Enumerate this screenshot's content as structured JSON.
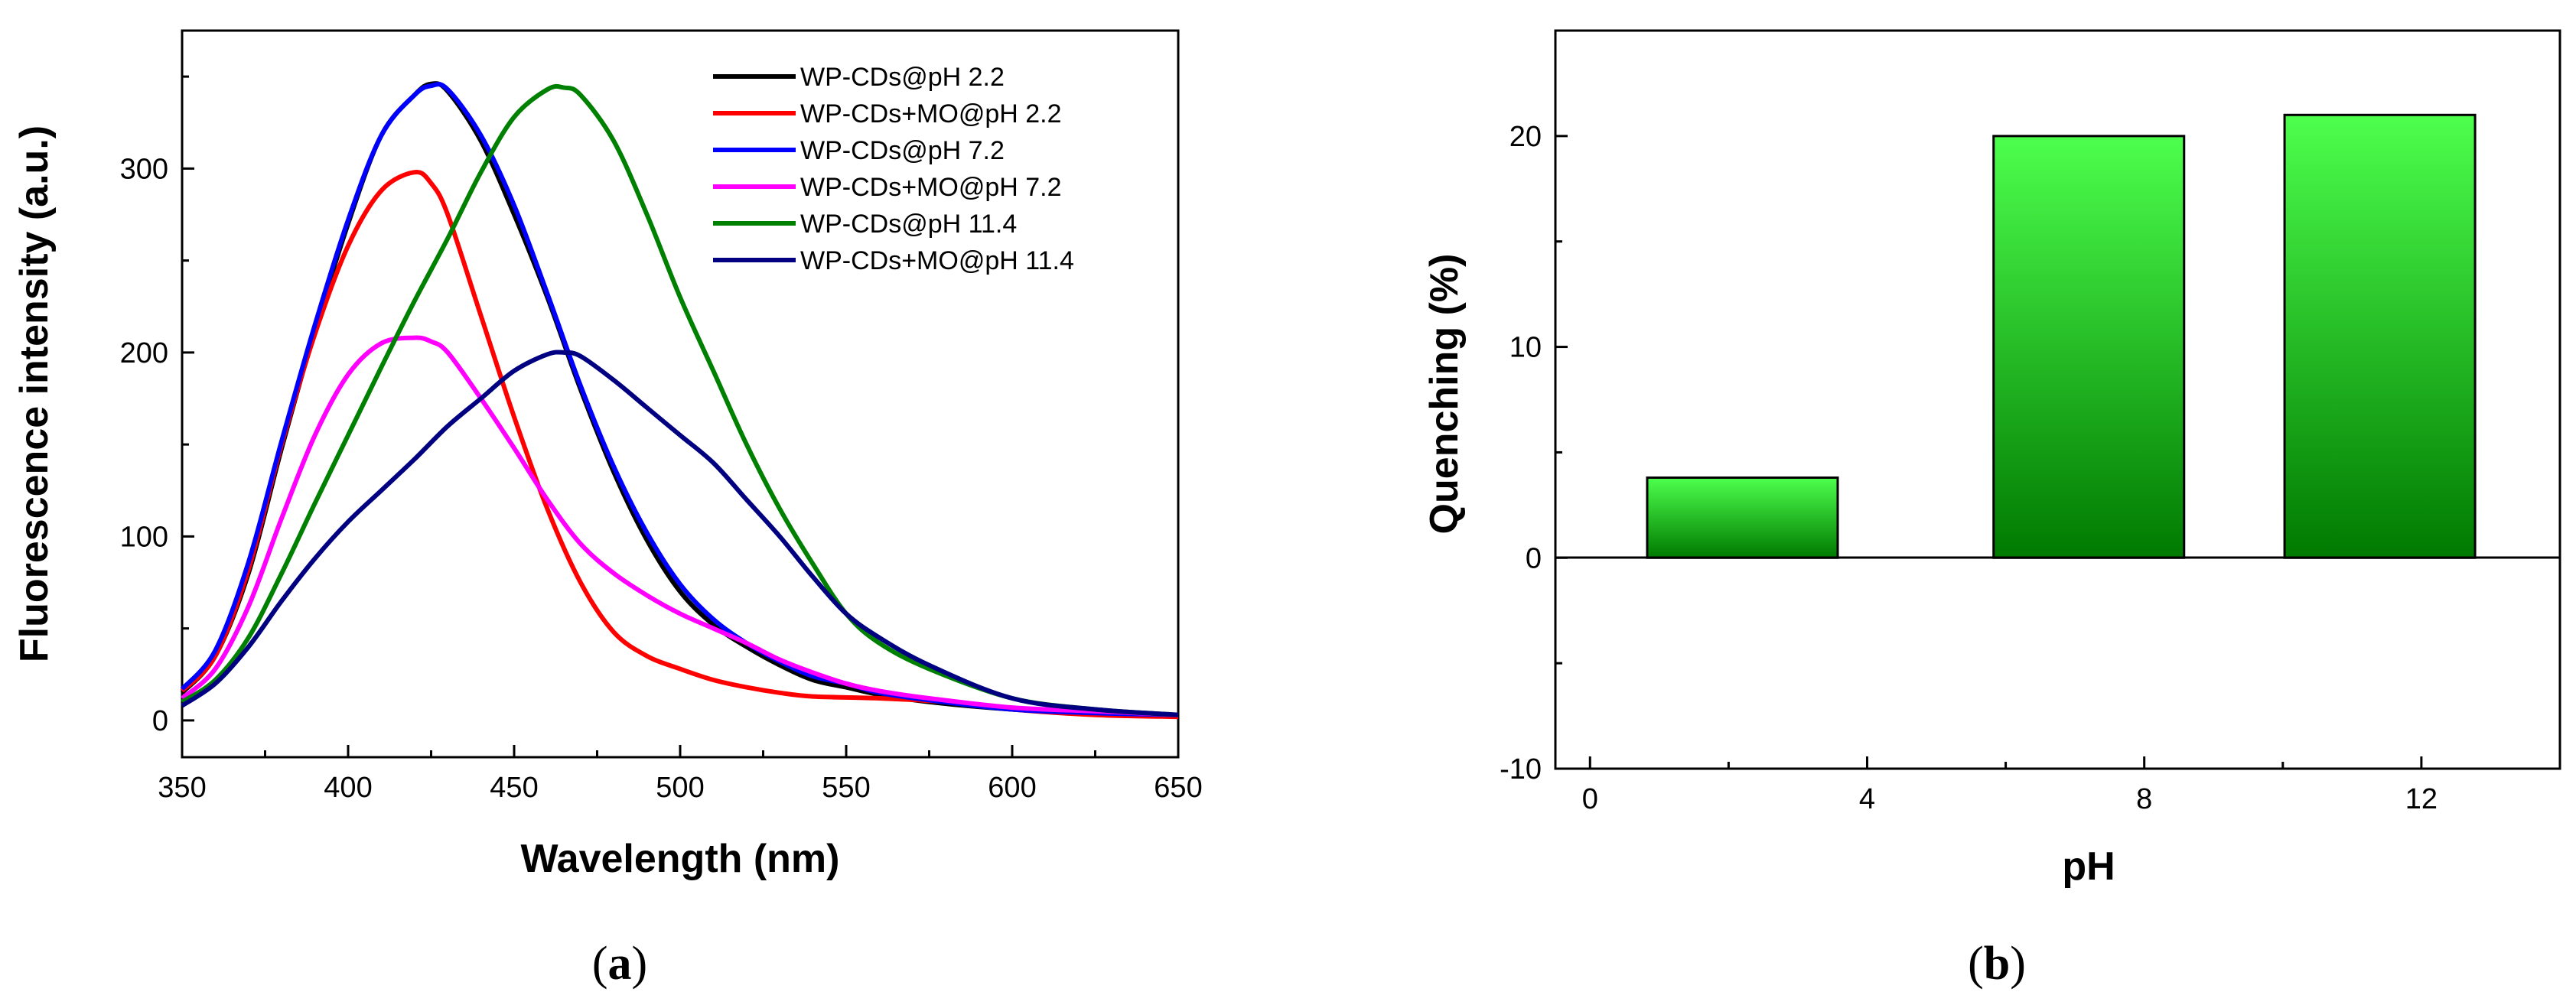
{
  "chart_data": [
    {
      "panel": "(a)",
      "panel_paren_open": "(",
      "panel_letter": "a",
      "panel_paren_close": ")",
      "type": "line",
      "xlabel": "Wavelength (nm)",
      "ylabel": "Fluorescence intensity (a.u.)",
      "xlim": [
        350,
        650
      ],
      "ylim": [
        -20,
        375
      ],
      "xticks": [
        350,
        400,
        450,
        500,
        550,
        600,
        650
      ],
      "yticks": [
        0,
        100,
        200,
        300
      ],
      "legend_position": "top-right",
      "series": [
        {
          "name": "WP-CDs@pH 2.2",
          "color": "#000000",
          "x": [
            350,
            360,
            370,
            380,
            390,
            400,
            410,
            420,
            425,
            430,
            440,
            450,
            460,
            470,
            480,
            490,
            500,
            510,
            520,
            530,
            540,
            550,
            560,
            575,
            600,
            625,
            650
          ],
          "y": [
            15,
            35,
            80,
            148,
            212,
            270,
            318,
            340,
            346,
            342,
            315,
            275,
            230,
            180,
            135,
            98,
            70,
            52,
            40,
            30,
            22,
            18,
            14,
            10,
            6,
            4,
            3
          ]
        },
        {
          "name": "WP-CDs+MO@pH 2.2",
          "color": "#ff0000",
          "x": [
            350,
            360,
            370,
            380,
            390,
            400,
            410,
            420,
            425,
            430,
            440,
            450,
            460,
            470,
            480,
            490,
            500,
            510,
            520,
            530,
            540,
            560,
            580,
            600,
            625,
            650
          ],
          "y": [
            16,
            35,
            82,
            150,
            210,
            258,
            288,
            298,
            292,
            275,
            220,
            165,
            115,
            75,
            48,
            35,
            28,
            22,
            18,
            15,
            13,
            12,
            10,
            6,
            3,
            2
          ]
        },
        {
          "name": "WP-CDs@pH 7.2",
          "color": "#0000ff",
          "x": [
            350,
            360,
            370,
            380,
            390,
            400,
            410,
            420,
            425,
            430,
            440,
            450,
            460,
            470,
            480,
            490,
            500,
            510,
            520,
            530,
            540,
            550,
            560,
            575,
            600,
            625,
            650
          ],
          "y": [
            17,
            38,
            86,
            152,
            215,
            272,
            318,
            340,
            345,
            343,
            318,
            280,
            232,
            182,
            138,
            102,
            74,
            55,
            42,
            32,
            24,
            20,
            15,
            11,
            6,
            4,
            3
          ]
        },
        {
          "name": "WP-CDs+MO@pH 7.2",
          "color": "#ff00ff",
          "x": [
            350,
            360,
            370,
            380,
            390,
            400,
            410,
            420,
            425,
            430,
            440,
            450,
            460,
            470,
            480,
            490,
            500,
            510,
            520,
            530,
            540,
            550,
            560,
            575,
            600,
            625,
            650
          ],
          "y": [
            12,
            28,
            62,
            110,
            155,
            188,
            205,
            208,
            206,
            200,
            175,
            148,
            120,
            96,
            80,
            68,
            58,
            50,
            42,
            33,
            26,
            20,
            16,
            12,
            7,
            5,
            3
          ]
        },
        {
          "name": "WP-CDs@pH 11.4",
          "color": "#008000",
          "x": [
            350,
            360,
            370,
            380,
            390,
            400,
            410,
            420,
            430,
            440,
            450,
            460,
            465,
            470,
            480,
            490,
            500,
            510,
            520,
            530,
            540,
            550,
            560,
            575,
            600,
            625,
            650
          ],
          "y": [
            10,
            22,
            45,
            80,
            118,
            155,
            192,
            228,
            262,
            298,
            328,
            343,
            344,
            340,
            315,
            275,
            230,
            190,
            150,
            115,
            85,
            58,
            42,
            28,
            12,
            6,
            3
          ]
        },
        {
          "name": "WP-CDs+MO@pH 11.4",
          "color": "#000080",
          "x": [
            350,
            360,
            370,
            380,
            390,
            400,
            410,
            420,
            430,
            440,
            450,
            460,
            465,
            470,
            480,
            490,
            500,
            510,
            520,
            530,
            540,
            550,
            560,
            575,
            600,
            625,
            650
          ],
          "y": [
            8,
            20,
            40,
            65,
            88,
            108,
            125,
            142,
            160,
            175,
            190,
            199,
            200,
            198,
            185,
            170,
            155,
            140,
            120,
            100,
            78,
            58,
            45,
            30,
            12,
            6,
            3
          ]
        }
      ]
    },
    {
      "panel": "(b)",
      "panel_paren_open": "(",
      "panel_letter": "b",
      "panel_paren_close": ")",
      "type": "bar",
      "xlabel": "pH",
      "ylabel": "Quenching (%)",
      "xlim": [
        -0.5,
        14
      ],
      "ylim": [
        -10,
        25
      ],
      "xticks": [
        0,
        4,
        8,
        12
      ],
      "yticks": [
        -10,
        0,
        10,
        20
      ],
      "categories": [
        "2.2",
        "7.2",
        "11.4"
      ],
      "x": [
        2.2,
        7.2,
        11.4
      ],
      "values": [
        3.8,
        20.0,
        21.0
      ],
      "bar_width": 2.75,
      "colors": {
        "top": "#4dff4d",
        "bottom": "#007a00"
      }
    }
  ]
}
